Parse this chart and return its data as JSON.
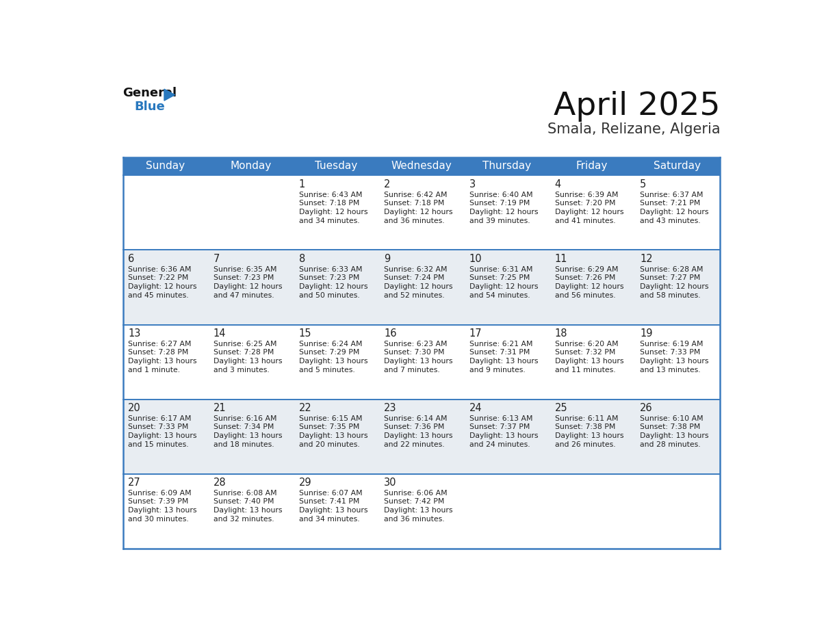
{
  "title": "April 2025",
  "subtitle": "Smala, Relizane, Algeria",
  "days_of_week": [
    "Sunday",
    "Monday",
    "Tuesday",
    "Wednesday",
    "Thursday",
    "Friday",
    "Saturday"
  ],
  "header_bg": "#3a7bbf",
  "header_text": "#ffffff",
  "row_bg_even": "#ffffff",
  "row_bg_odd": "#e8edf2",
  "border_color": "#3a7bbf",
  "text_color": "#222222",
  "title_color": "#111111",
  "subtitle_color": "#333333",
  "logo_general_color": "#111111",
  "logo_blue_color": "#2878be",
  "weeks": [
    [
      {
        "day": "",
        "sunrise": "",
        "sunset": "",
        "daylight": ""
      },
      {
        "day": "",
        "sunrise": "",
        "sunset": "",
        "daylight": ""
      },
      {
        "day": "1",
        "sunrise": "Sunrise: 6:43 AM",
        "sunset": "Sunset: 7:18 PM",
        "daylight": "Daylight: 12 hours\nand 34 minutes."
      },
      {
        "day": "2",
        "sunrise": "Sunrise: 6:42 AM",
        "sunset": "Sunset: 7:18 PM",
        "daylight": "Daylight: 12 hours\nand 36 minutes."
      },
      {
        "day": "3",
        "sunrise": "Sunrise: 6:40 AM",
        "sunset": "Sunset: 7:19 PM",
        "daylight": "Daylight: 12 hours\nand 39 minutes."
      },
      {
        "day": "4",
        "sunrise": "Sunrise: 6:39 AM",
        "sunset": "Sunset: 7:20 PM",
        "daylight": "Daylight: 12 hours\nand 41 minutes."
      },
      {
        "day": "5",
        "sunrise": "Sunrise: 6:37 AM",
        "sunset": "Sunset: 7:21 PM",
        "daylight": "Daylight: 12 hours\nand 43 minutes."
      }
    ],
    [
      {
        "day": "6",
        "sunrise": "Sunrise: 6:36 AM",
        "sunset": "Sunset: 7:22 PM",
        "daylight": "Daylight: 12 hours\nand 45 minutes."
      },
      {
        "day": "7",
        "sunrise": "Sunrise: 6:35 AM",
        "sunset": "Sunset: 7:23 PM",
        "daylight": "Daylight: 12 hours\nand 47 minutes."
      },
      {
        "day": "8",
        "sunrise": "Sunrise: 6:33 AM",
        "sunset": "Sunset: 7:23 PM",
        "daylight": "Daylight: 12 hours\nand 50 minutes."
      },
      {
        "day": "9",
        "sunrise": "Sunrise: 6:32 AM",
        "sunset": "Sunset: 7:24 PM",
        "daylight": "Daylight: 12 hours\nand 52 minutes."
      },
      {
        "day": "10",
        "sunrise": "Sunrise: 6:31 AM",
        "sunset": "Sunset: 7:25 PM",
        "daylight": "Daylight: 12 hours\nand 54 minutes."
      },
      {
        "day": "11",
        "sunrise": "Sunrise: 6:29 AM",
        "sunset": "Sunset: 7:26 PM",
        "daylight": "Daylight: 12 hours\nand 56 minutes."
      },
      {
        "day": "12",
        "sunrise": "Sunrise: 6:28 AM",
        "sunset": "Sunset: 7:27 PM",
        "daylight": "Daylight: 12 hours\nand 58 minutes."
      }
    ],
    [
      {
        "day": "13",
        "sunrise": "Sunrise: 6:27 AM",
        "sunset": "Sunset: 7:28 PM",
        "daylight": "Daylight: 13 hours\nand 1 minute."
      },
      {
        "day": "14",
        "sunrise": "Sunrise: 6:25 AM",
        "sunset": "Sunset: 7:28 PM",
        "daylight": "Daylight: 13 hours\nand 3 minutes."
      },
      {
        "day": "15",
        "sunrise": "Sunrise: 6:24 AM",
        "sunset": "Sunset: 7:29 PM",
        "daylight": "Daylight: 13 hours\nand 5 minutes."
      },
      {
        "day": "16",
        "sunrise": "Sunrise: 6:23 AM",
        "sunset": "Sunset: 7:30 PM",
        "daylight": "Daylight: 13 hours\nand 7 minutes."
      },
      {
        "day": "17",
        "sunrise": "Sunrise: 6:21 AM",
        "sunset": "Sunset: 7:31 PM",
        "daylight": "Daylight: 13 hours\nand 9 minutes."
      },
      {
        "day": "18",
        "sunrise": "Sunrise: 6:20 AM",
        "sunset": "Sunset: 7:32 PM",
        "daylight": "Daylight: 13 hours\nand 11 minutes."
      },
      {
        "day": "19",
        "sunrise": "Sunrise: 6:19 AM",
        "sunset": "Sunset: 7:33 PM",
        "daylight": "Daylight: 13 hours\nand 13 minutes."
      }
    ],
    [
      {
        "day": "20",
        "sunrise": "Sunrise: 6:17 AM",
        "sunset": "Sunset: 7:33 PM",
        "daylight": "Daylight: 13 hours\nand 15 minutes."
      },
      {
        "day": "21",
        "sunrise": "Sunrise: 6:16 AM",
        "sunset": "Sunset: 7:34 PM",
        "daylight": "Daylight: 13 hours\nand 18 minutes."
      },
      {
        "day": "22",
        "sunrise": "Sunrise: 6:15 AM",
        "sunset": "Sunset: 7:35 PM",
        "daylight": "Daylight: 13 hours\nand 20 minutes."
      },
      {
        "day": "23",
        "sunrise": "Sunrise: 6:14 AM",
        "sunset": "Sunset: 7:36 PM",
        "daylight": "Daylight: 13 hours\nand 22 minutes."
      },
      {
        "day": "24",
        "sunrise": "Sunrise: 6:13 AM",
        "sunset": "Sunset: 7:37 PM",
        "daylight": "Daylight: 13 hours\nand 24 minutes."
      },
      {
        "day": "25",
        "sunrise": "Sunrise: 6:11 AM",
        "sunset": "Sunset: 7:38 PM",
        "daylight": "Daylight: 13 hours\nand 26 minutes."
      },
      {
        "day": "26",
        "sunrise": "Sunrise: 6:10 AM",
        "sunset": "Sunset: 7:38 PM",
        "daylight": "Daylight: 13 hours\nand 28 minutes."
      }
    ],
    [
      {
        "day": "27",
        "sunrise": "Sunrise: 6:09 AM",
        "sunset": "Sunset: 7:39 PM",
        "daylight": "Daylight: 13 hours\nand 30 minutes."
      },
      {
        "day": "28",
        "sunrise": "Sunrise: 6:08 AM",
        "sunset": "Sunset: 7:40 PM",
        "daylight": "Daylight: 13 hours\nand 32 minutes."
      },
      {
        "day": "29",
        "sunrise": "Sunrise: 6:07 AM",
        "sunset": "Sunset: 7:41 PM",
        "daylight": "Daylight: 13 hours\nand 34 minutes."
      },
      {
        "day": "30",
        "sunrise": "Sunrise: 6:06 AM",
        "sunset": "Sunset: 7:42 PM",
        "daylight": "Daylight: 13 hours\nand 36 minutes."
      },
      {
        "day": "",
        "sunrise": "",
        "sunset": "",
        "daylight": ""
      },
      {
        "day": "",
        "sunrise": "",
        "sunset": "",
        "daylight": ""
      },
      {
        "day": "",
        "sunrise": "",
        "sunset": "",
        "daylight": ""
      }
    ]
  ]
}
